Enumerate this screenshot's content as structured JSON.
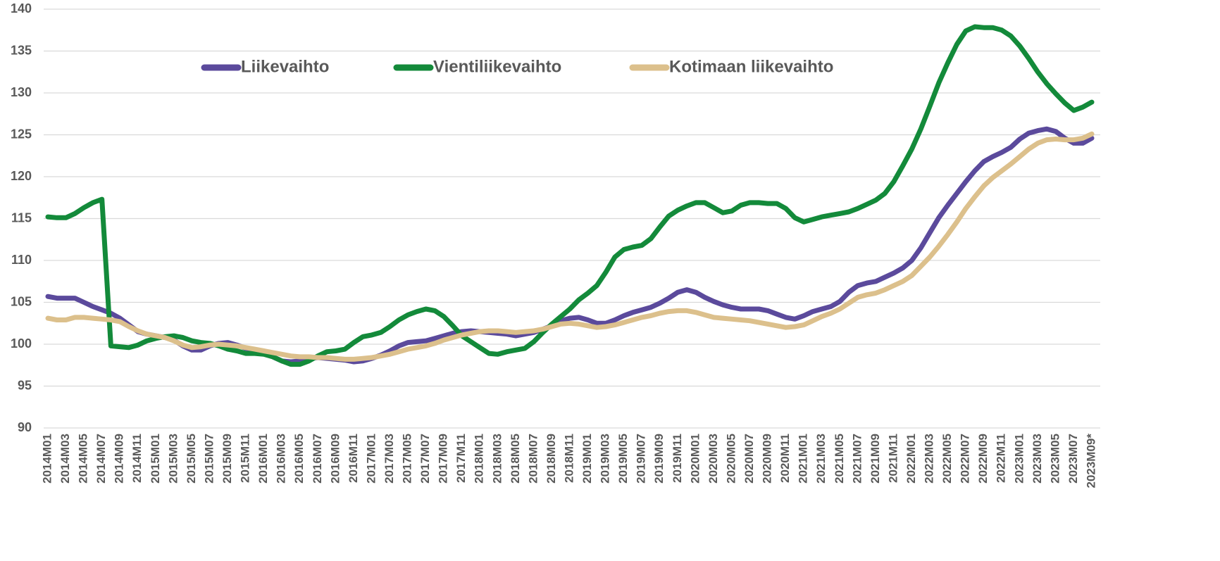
{
  "chart_data": {
    "type": "line",
    "categories": [
      "2014M01",
      null,
      "2014M03",
      null,
      "2014M05",
      null,
      "2014M07",
      null,
      "2014M09",
      null,
      "2014M11",
      null,
      "2015M01",
      null,
      "2015M03",
      null,
      "2015M05",
      null,
      "2015M07",
      null,
      "2015M09",
      null,
      "2015M11",
      null,
      "2016M01",
      null,
      "2016M03",
      null,
      "2016M05",
      null,
      "2016M07",
      null,
      "2016M09",
      null,
      "2016M11",
      null,
      "2017M01",
      null,
      "2017M03",
      null,
      "2017M05",
      null,
      "2017M07",
      null,
      "2017M09",
      null,
      "2017M11",
      null,
      "2018M01",
      null,
      "2018M03",
      null,
      "2018M05",
      null,
      "2018M07",
      null,
      "2018M09",
      null,
      "2018M11",
      null,
      "2019M01",
      null,
      "2019M03",
      null,
      "2019M05",
      null,
      "2019M07",
      null,
      "2019M09",
      null,
      "2019M11",
      null,
      "2020M01",
      null,
      "2020M03",
      null,
      "2020M05",
      null,
      "2020M07",
      null,
      "2020M09",
      null,
      "2020M11",
      null,
      "2021M01",
      null,
      "2021M03",
      null,
      "2021M05",
      null,
      "2021M07",
      null,
      "2021M09",
      null,
      "2021M11",
      null,
      "2022M01",
      null,
      "2022M03",
      null,
      "2022M05",
      null,
      "2022M07",
      null,
      "2022M09",
      null,
      "2022M11",
      null,
      "2023M01",
      null,
      "2023M03",
      null,
      "2023M05",
      null,
      "2023M07",
      null,
      "2023M09*"
    ],
    "series": [
      {
        "name": "Liikevaihto",
        "color": "#5b4a9c",
        "values": [
          105.7,
          105.5,
          105.5,
          105.5,
          105.0,
          104.5,
          104.1,
          103.7,
          103.1,
          102.3,
          101.5,
          101.2,
          101.0,
          100.8,
          100.5,
          99.8,
          99.3,
          99.3,
          99.8,
          100.1,
          100.2,
          99.9,
          99.5,
          99.2,
          98.9,
          98.5,
          98.0,
          97.9,
          98.0,
          98.3,
          98.4,
          98.3,
          98.2,
          98.1,
          97.9,
          98.0,
          98.3,
          98.7,
          99.2,
          99.8,
          100.2,
          100.3,
          100.4,
          100.7,
          101.0,
          101.3,
          101.5,
          101.6,
          101.5,
          101.4,
          101.3,
          101.2,
          101.0,
          101.2,
          101.4,
          101.8,
          102.2,
          102.8,
          103.1,
          103.2,
          102.9,
          102.5,
          102.5,
          102.9,
          103.4,
          103.8,
          104.1,
          104.4,
          104.9,
          105.5,
          106.2,
          106.5,
          106.2,
          105.6,
          105.1,
          104.7,
          104.4,
          104.2,
          104.2,
          104.2,
          104.0,
          103.6,
          103.2,
          103.0,
          103.4,
          103.9,
          104.2,
          104.5,
          105.1,
          106.2,
          107.0,
          107.3,
          107.5,
          108.0,
          108.5,
          109.1,
          110.0,
          111.5,
          113.3,
          115.1,
          116.6,
          118.0,
          119.4,
          120.7,
          121.8,
          122.4,
          122.9,
          123.5,
          124.5,
          125.2,
          125.5,
          125.7,
          125.4,
          124.6,
          124.0,
          124.0,
          124.6
        ]
      },
      {
        "name": "Vientiliikevaihto",
        "color": "#138a3a",
        "values": [
          115.2,
          115.1,
          115.1,
          115.6,
          116.3,
          116.9,
          117.3,
          99.8,
          99.7,
          99.6,
          99.9,
          100.4,
          100.7,
          100.9,
          101.0,
          100.8,
          100.4,
          100.2,
          100.1,
          99.8,
          99.4,
          99.2,
          98.9,
          98.9,
          98.8,
          98.5,
          98.0,
          97.6,
          97.6,
          98.0,
          98.6,
          99.1,
          99.2,
          99.4,
          100.2,
          100.9,
          101.1,
          101.4,
          102.1,
          102.9,
          103.5,
          103.9,
          104.2,
          104.0,
          103.3,
          102.2,
          101.0,
          100.3,
          99.6,
          98.9,
          98.8,
          99.1,
          99.3,
          99.5,
          100.3,
          101.4,
          102.4,
          103.3,
          104.2,
          105.3,
          106.1,
          107.0,
          108.6,
          110.4,
          111.3,
          111.6,
          111.8,
          112.6,
          114.0,
          115.3,
          116.0,
          116.5,
          116.9,
          116.9,
          116.3,
          115.7,
          115.9,
          116.6,
          116.9,
          116.9,
          116.8,
          116.8,
          116.2,
          115.1,
          114.6,
          114.9,
          115.2,
          115.4,
          115.6,
          115.8,
          116.2,
          116.7,
          117.2,
          118.0,
          119.4,
          121.3,
          123.3,
          125.7,
          128.4,
          131.2,
          133.6,
          135.8,
          137.4,
          137.9,
          137.8,
          137.8,
          137.5,
          136.8,
          135.6,
          134.1,
          132.5,
          131.1,
          129.9,
          128.8,
          127.9,
          128.3,
          128.9
        ]
      },
      {
        "name": "Kotimaan liikevaihto",
        "color": "#dcc08c",
        "values": [
          103.1,
          102.9,
          102.9,
          103.2,
          103.2,
          103.1,
          103.0,
          102.9,
          102.7,
          102.1,
          101.6,
          101.2,
          101.0,
          100.8,
          100.4,
          99.9,
          99.6,
          99.7,
          99.9,
          100.0,
          99.9,
          99.8,
          99.6,
          99.4,
          99.2,
          99.0,
          98.8,
          98.6,
          98.5,
          98.5,
          98.4,
          98.4,
          98.3,
          98.2,
          98.2,
          98.3,
          98.4,
          98.6,
          98.8,
          99.1,
          99.4,
          99.6,
          99.8,
          100.1,
          100.5,
          100.8,
          101.1,
          101.3,
          101.5,
          101.6,
          101.6,
          101.5,
          101.4,
          101.5,
          101.6,
          101.8,
          102.1,
          102.4,
          102.5,
          102.4,
          102.2,
          102.0,
          102.1,
          102.3,
          102.6,
          102.9,
          103.2,
          103.4,
          103.7,
          103.9,
          104.0,
          104.0,
          103.8,
          103.5,
          103.2,
          103.1,
          103.0,
          102.9,
          102.8,
          102.6,
          102.4,
          102.2,
          102.0,
          102.1,
          102.3,
          102.8,
          103.3,
          103.7,
          104.2,
          104.9,
          105.6,
          105.9,
          106.1,
          106.5,
          107.0,
          107.5,
          108.2,
          109.3,
          110.4,
          111.7,
          113.1,
          114.6,
          116.2,
          117.6,
          118.9,
          119.9,
          120.7,
          121.5,
          122.4,
          123.3,
          124.0,
          124.4,
          124.5,
          124.4,
          124.4,
          124.6,
          125.1
        ]
      }
    ],
    "ylim": [
      90,
      140
    ],
    "yticks": [
      90,
      95,
      100,
      105,
      110,
      115,
      120,
      125,
      130,
      135,
      140
    ],
    "grid": true,
    "legend": "top"
  }
}
